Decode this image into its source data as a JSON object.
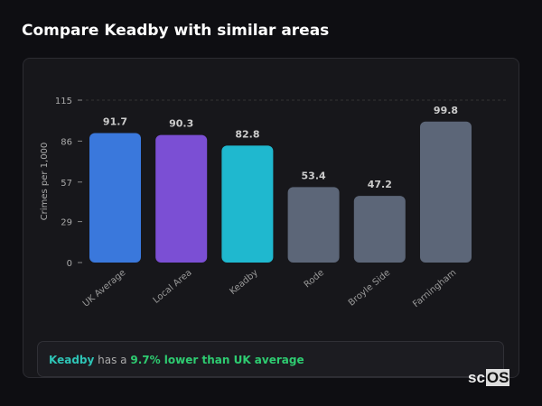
{
  "title": "Compare Keadby with similar areas",
  "chart_data": {
    "type": "bar",
    "categories": [
      "UK Average",
      "Local Area",
      "Keadby",
      "Rode",
      "Broyle Side",
      "Farningham"
    ],
    "values": [
      91.7,
      90.3,
      82.8,
      53.4,
      47.2,
      99.8
    ],
    "colors": [
      "#3a78dc",
      "#7b4fd4",
      "#1fb8cf",
      "#5c6678",
      "#5c6678",
      "#5c6678"
    ],
    "ylabel": "Crimes per 1,000",
    "yticks": [
      0,
      29,
      57,
      86,
      115
    ],
    "ylim": [
      0,
      115
    ],
    "grid": false
  },
  "note": {
    "area": "Keadby",
    "mid": " has a ",
    "highlight": "9.7% lower than UK average"
  },
  "logo": {
    "prefix": "sc",
    "suffix": "OS"
  }
}
